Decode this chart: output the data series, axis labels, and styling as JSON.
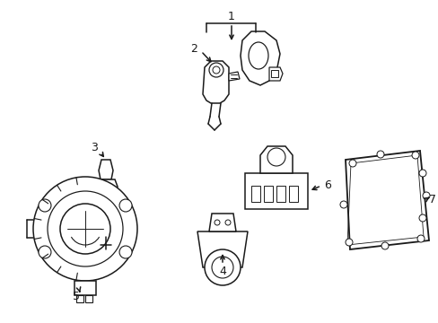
{
  "background_color": "#ffffff",
  "line_color": "#1a1a1a",
  "figure_width": 4.89,
  "figure_height": 3.6,
  "dpi": 100
}
